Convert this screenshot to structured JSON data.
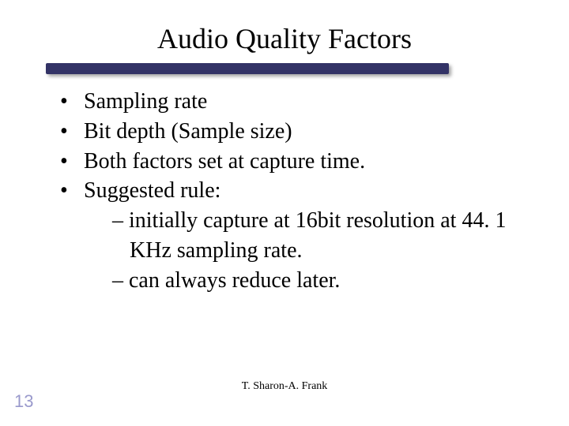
{
  "slide": {
    "title": "Audio Quality Factors",
    "underline": {
      "color": "#333366",
      "shadow": "rgba(0,0,0,0.35)"
    },
    "bullets": [
      {
        "text": "Sampling rate"
      },
      {
        "text": "Bit depth (Sample size)"
      },
      {
        "text": "Both factors set at capture time."
      },
      {
        "text": "Suggested rule:",
        "sub": [
          "– initially capture at 16bit resolution at 44. 1 KHz sampling rate.",
          "– can always reduce later."
        ]
      }
    ],
    "footer_author": "T. Sharon-A. Frank",
    "page_number": "13",
    "colors": {
      "background": "#ffffff",
      "text": "#000000",
      "page_number": "#9999cc"
    },
    "fonts": {
      "title_size_pt": 36,
      "body_size_pt": 28,
      "footer_size_pt": 14,
      "page_number_size_pt": 22,
      "body_family": "Times New Roman",
      "page_number_family": "Arial"
    }
  }
}
